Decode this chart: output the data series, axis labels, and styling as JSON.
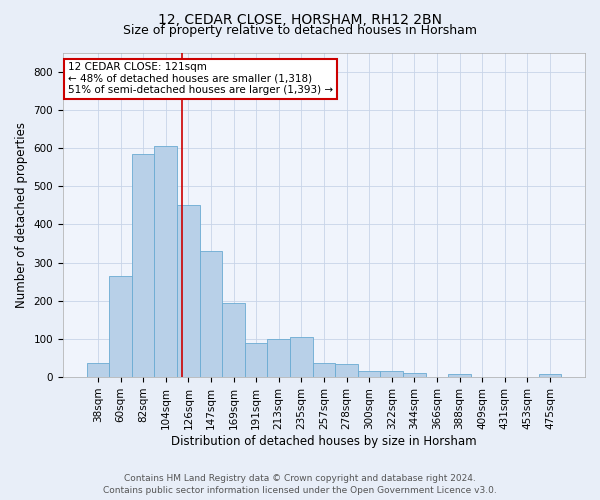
{
  "title1": "12, CEDAR CLOSE, HORSHAM, RH12 2BN",
  "title2": "Size of property relative to detached houses in Horsham",
  "xlabel": "Distribution of detached houses by size in Horsham",
  "ylabel": "Number of detached properties",
  "categories": [
    "38sqm",
    "60sqm",
    "82sqm",
    "104sqm",
    "126sqm",
    "147sqm",
    "169sqm",
    "191sqm",
    "213sqm",
    "235sqm",
    "257sqm",
    "278sqm",
    "300sqm",
    "322sqm",
    "344sqm",
    "366sqm",
    "388sqm",
    "409sqm",
    "431sqm",
    "453sqm",
    "475sqm"
  ],
  "values": [
    38,
    265,
    585,
    605,
    450,
    330,
    195,
    90,
    100,
    105,
    38,
    33,
    15,
    15,
    10,
    0,
    7,
    0,
    0,
    0,
    7
  ],
  "bar_color": "#b8d0e8",
  "bar_edge_color": "#6aabd2",
  "annotation_text": "12 CEDAR CLOSE: 121sqm\n← 48% of detached houses are smaller (1,318)\n51% of semi-detached houses are larger (1,393) →",
  "annotation_box_color": "#ffffff",
  "annotation_box_edge_color": "#cc0000",
  "vline_color": "#cc0000",
  "vline_x": 3.72,
  "ylim": [
    0,
    850
  ],
  "yticks": [
    0,
    100,
    200,
    300,
    400,
    500,
    600,
    700,
    800
  ],
  "footer1": "Contains HM Land Registry data © Crown copyright and database right 2024.",
  "footer2": "Contains public sector information licensed under the Open Government Licence v3.0.",
  "bg_color": "#e8eef8",
  "plot_bg_color": "#f0f4fc",
  "grid_color": "#c8d4e8",
  "title1_fontsize": 10,
  "title2_fontsize": 9,
  "xlabel_fontsize": 8.5,
  "ylabel_fontsize": 8.5,
  "tick_fontsize": 7.5,
  "footer_fontsize": 6.5,
  "ann_fontsize": 7.5
}
